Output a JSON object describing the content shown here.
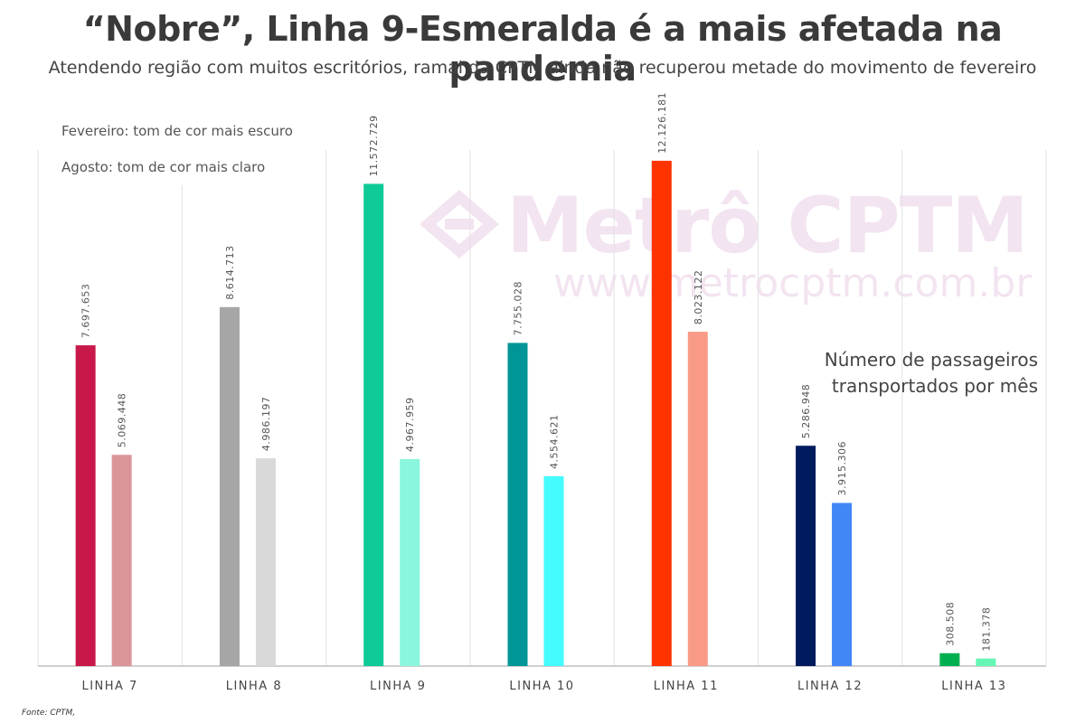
{
  "title": "“Nobre”, Linha 9-Esmeralda é a mais afetada na pandemia",
  "subtitle": "Atendendo região com muitos escritórios, ramal da CPTM ainda não recuperou metade do movimento de fevereiro",
  "legend": {
    "dark": "Fevereiro: tom de cor mais escuro",
    "light": "Agosto: tom de cor mais claro"
  },
  "watermark": {
    "text": "Metrô CPTM",
    "url": "www.metrocptm.com.br"
  },
  "note": {
    "line1": "Número de passageiros",
    "line2": "transportados por mês"
  },
  "source": "Fonte: CPTM,",
  "chart_data": {
    "type": "bar",
    "categories": [
      "LINHA 7",
      "LINHA 8",
      "LINHA 9",
      "LINHA 10",
      "LINHA 11",
      "LINHA 12",
      "LINHA 13"
    ],
    "series": [
      {
        "values": [
          7697653,
          8614713,
          11572729,
          7755028,
          12126181,
          5286948,
          308508
        ],
        "labels": [
          "7.697.653",
          "8.614.713",
          "11.572.729",
          "7.755.028",
          "12.126.181",
          "5.286.948",
          "308.508"
        ],
        "colors": [
          "#c8184a",
          "#a6a6a6",
          "#0dca96",
          "#009596",
          "#ff3300",
          "#001a5e",
          "#00b050"
        ]
      },
      {
        "values": [
          5069448,
          4986197,
          4967959,
          4554621,
          8023122,
          3915306,
          181378
        ],
        "labels": [
          "5.069.448",
          "4.986.197",
          "4.967.959",
          "4.554.621",
          "8.023.122",
          "3.915.306",
          "181.378"
        ],
        "colors": [
          "#db9599",
          "#d9d9d9",
          "#8af6dc",
          "#44fbfd",
          "#f99a86",
          "#4287f6",
          "#66f5b4"
        ]
      }
    ],
    "ylim": [
      0,
      13000000
    ],
    "grid": "vertical separators",
    "legend_position": "top-left"
  }
}
